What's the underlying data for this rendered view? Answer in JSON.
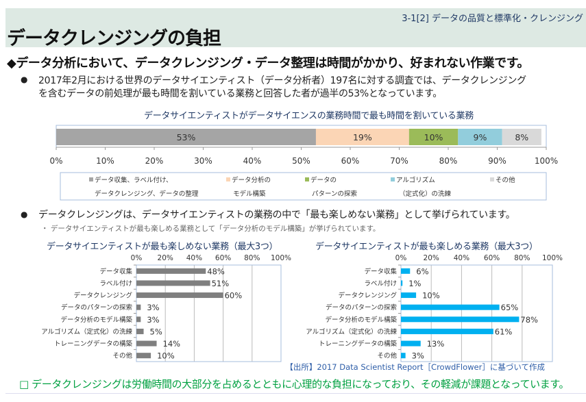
{
  "header": {
    "section": "3-1[2] データの品質と標準化・クレンジング",
    "title": "データクレンジングの負担"
  },
  "lead": "◆データ分析において、データクレンジング・データ整理は時間がかかり、好まれない作業です。",
  "bullet1": {
    "line1": "2017年2月における世界のデータサイエンティスト（データ分析者）197名に対する調査では、データクレンジング",
    "line2": "を含むデータの前処理が最も時間を割いている業務と回答した者が過半の53%となっています。"
  },
  "bullet2": "データクレンジングは、データサイエンティストの業務の中で「最も楽しめない業務」として挙げられています。",
  "subbullet": "・ データサイエンティストが最も楽しめる業務として「データ分析のモデル構築」が挙げられています。",
  "source": "【出所】2017 Data Scientist Report［CrowdFlower］に基づいて作成",
  "conclusion": "□ データクレンジングは労働時間の大部分を占めるとともに心理的な負担になっており、その軽減が課題となっています。",
  "chart_data": [
    {
      "type": "bar",
      "stacked": true,
      "orientation": "horizontal",
      "title": "データサイエンティストがデータサイエンスの業務時間で最も時間を割いている業務",
      "series": [
        {
          "name": "データ収集、ラベル付け、データクレンジング、データの整理",
          "legend_lines": [
            "データ収集、ラベル付け、",
            "データクレンジング、データの整理"
          ],
          "value": 53,
          "label": "53%",
          "color": "#a5a5a5"
        },
        {
          "name": "データ分析のモデル構築",
          "legend_lines": [
            "データ分析の",
            "モデル構築"
          ],
          "value": 19,
          "label": "19%",
          "color": "#fbd5b5"
        },
        {
          "name": "データのパターンの探索",
          "legend_lines": [
            "データの",
            "パターンの探索"
          ],
          "value": 10,
          "label": "10%",
          "color": "#9bbb59"
        },
        {
          "name": "アルゴリズム（定式化）の洗練",
          "legend_lines": [
            "アルゴリズム",
            "（定式化）の洗練"
          ],
          "value": 9,
          "label": "9%",
          "color": "#92cddc"
        },
        {
          "name": "その他",
          "legend_lines": [
            "その他",
            ""
          ],
          "value": 8,
          "label": "8%",
          "color": "#d9d9d9"
        }
      ],
      "xlim": [
        0,
        100
      ],
      "xticks": [
        "0%",
        "10%",
        "20%",
        "30%",
        "40%",
        "50%",
        "60%",
        "70%",
        "80%",
        "90%",
        "100%"
      ],
      "legend": "bottom"
    },
    {
      "type": "bar",
      "orientation": "horizontal",
      "title": "データサイエンティストが最も楽しめない業務（最大3つ）",
      "categories": [
        "データ収集",
        "ラベル付け",
        "データクレンジング",
        "データのパターンの探索",
        "データ分析のモデル構築",
        "アルゴリズム（定式化）の洗練",
        "トレーニングデータの構築",
        "その他"
      ],
      "values": [
        48,
        51,
        60,
        3,
        3,
        5,
        14,
        10
      ],
      "labels": [
        "48%",
        "51%",
        "60%",
        "3%",
        "3%",
        "5%",
        "14%",
        "10%"
      ],
      "color": "#7f7f7f",
      "xlim": [
        0,
        100
      ],
      "xticks": [
        "0%",
        "20%",
        "40%",
        "60%",
        "80%",
        "100%"
      ]
    },
    {
      "type": "bar",
      "orientation": "horizontal",
      "title": "データサイエンティストが最も楽しめる業務（最大3つ）",
      "categories": [
        "データ収集",
        "ラベル付け",
        "データクレンジング",
        "データのパターンの探索",
        "データ分析のモデル構築",
        "アルゴリズム（定式化）の洗練",
        "トレーニングデータの構築",
        "その他"
      ],
      "values": [
        6,
        1,
        10,
        65,
        78,
        61,
        13,
        3
      ],
      "labels": [
        "6%",
        "1%",
        "10%",
        "65%",
        "78%",
        "61%",
        "13%",
        "3%"
      ],
      "color": "#00b0f0",
      "xlim": [
        0,
        100
      ],
      "xticks": [
        "0%",
        "20%",
        "40%",
        "60%",
        "80%",
        "100%"
      ]
    }
  ]
}
